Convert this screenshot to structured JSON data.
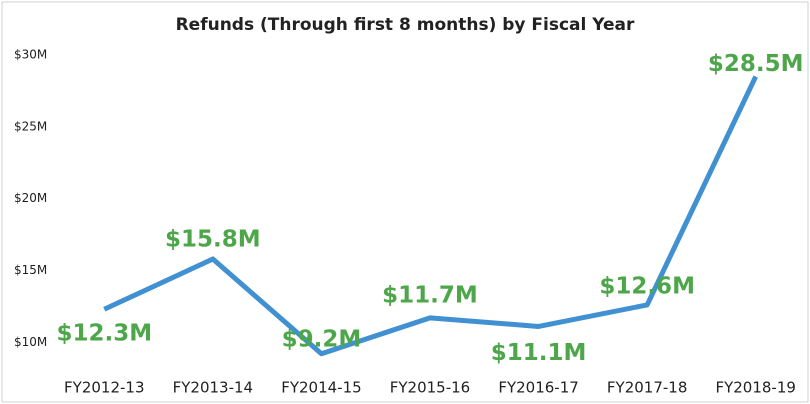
{
  "chart_data": {
    "type": "line",
    "title": "Refunds (Through first 8 months) by Fiscal Year",
    "categories": [
      "FY2012-13",
      "FY2013-14",
      "FY2014-15",
      "FY2015-16",
      "FY2016-17",
      "FY2017-18",
      "FY2018-19"
    ],
    "series": [
      {
        "name": "Refunds",
        "color": "#4190d2",
        "values": [
          12.3,
          15.8,
          9.2,
          11.7,
          11.1,
          12.6,
          28.5
        ],
        "value_labels": [
          "$12.3M",
          "$15.8M",
          "$9.2M",
          "$11.7M",
          "$11.1M",
          "$12.6M",
          "$28.5M"
        ]
      }
    ],
    "label_color": "#4ea64a",
    "ylim": [
      8,
      30
    ],
    "yticks": [
      {
        "value": 10,
        "label": "$10M"
      },
      {
        "value": 15,
        "label": "$15M"
      },
      {
        "value": 20,
        "label": "$20M"
      },
      {
        "value": 25,
        "label": "$25M"
      },
      {
        "value": 30,
        "label": "$30M"
      }
    ],
    "grid": false
  }
}
